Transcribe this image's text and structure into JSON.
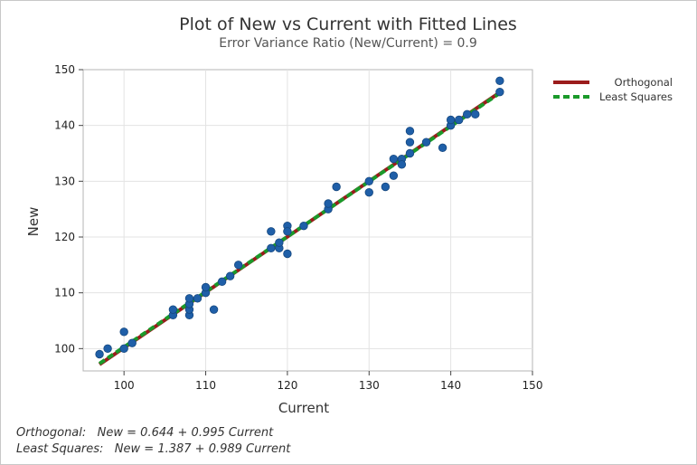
{
  "chart_data": {
    "type": "scatter",
    "title": "Plot of New vs Current with Fitted Lines",
    "subtitle": "Error Variance Ratio (New/Current) = 0.9",
    "xlabel": "Current",
    "ylabel": "New",
    "xlim": [
      95,
      150
    ],
    "ylim": [
      96,
      150
    ],
    "xticks": [
      100,
      110,
      120,
      130,
      140,
      150
    ],
    "yticks": [
      100,
      110,
      120,
      130,
      140,
      150
    ],
    "grid": true,
    "legend_position": "top-right",
    "points": [
      [
        97,
        99
      ],
      [
        98,
        100
      ],
      [
        100,
        103
      ],
      [
        100,
        100
      ],
      [
        101,
        101
      ],
      [
        106,
        106
      ],
      [
        106,
        107
      ],
      [
        108,
        106
      ],
      [
        108,
        107
      ],
      [
        108,
        108
      ],
      [
        108,
        109
      ],
      [
        109,
        109
      ],
      [
        110,
        110
      ],
      [
        110,
        111
      ],
      [
        111,
        107
      ],
      [
        112,
        112
      ],
      [
        113,
        113
      ],
      [
        114,
        115
      ],
      [
        118,
        121
      ],
      [
        118,
        118
      ],
      [
        119,
        118
      ],
      [
        119,
        119
      ],
      [
        120,
        122
      ],
      [
        120,
        121
      ],
      [
        120,
        117
      ],
      [
        122,
        122
      ],
      [
        125,
        125
      ],
      [
        125,
        126
      ],
      [
        126,
        129
      ],
      [
        130,
        130
      ],
      [
        130,
        128
      ],
      [
        132,
        129
      ],
      [
        133,
        131
      ],
      [
        133,
        134
      ],
      [
        134,
        134
      ],
      [
        134,
        133
      ],
      [
        135,
        135
      ],
      [
        135,
        137
      ],
      [
        135,
        139
      ],
      [
        137,
        137
      ],
      [
        139,
        136
      ],
      [
        140,
        140
      ],
      [
        140,
        141
      ],
      [
        141,
        141
      ],
      [
        142,
        142
      ],
      [
        143,
        142
      ],
      [
        146,
        146
      ],
      [
        146,
        148
      ]
    ],
    "point_color": "#1f5fa8",
    "lines": [
      {
        "name": "Orthogonal",
        "intercept": 0.644,
        "slope": 0.995,
        "color": "#9b1c1c",
        "style": "solid",
        "x_range": [
          97,
          146
        ]
      },
      {
        "name": "Least Squares",
        "intercept": 1.387,
        "slope": 0.989,
        "color": "#1a9a2a",
        "style": "dashed",
        "x_range": [
          97,
          146
        ]
      }
    ]
  },
  "equations": {
    "orthogonal": "Orthogonal:   New = 0.644 + 0.995 Current",
    "least_squares": "Least Squares:   New = 1.387 + 0.989 Current"
  }
}
